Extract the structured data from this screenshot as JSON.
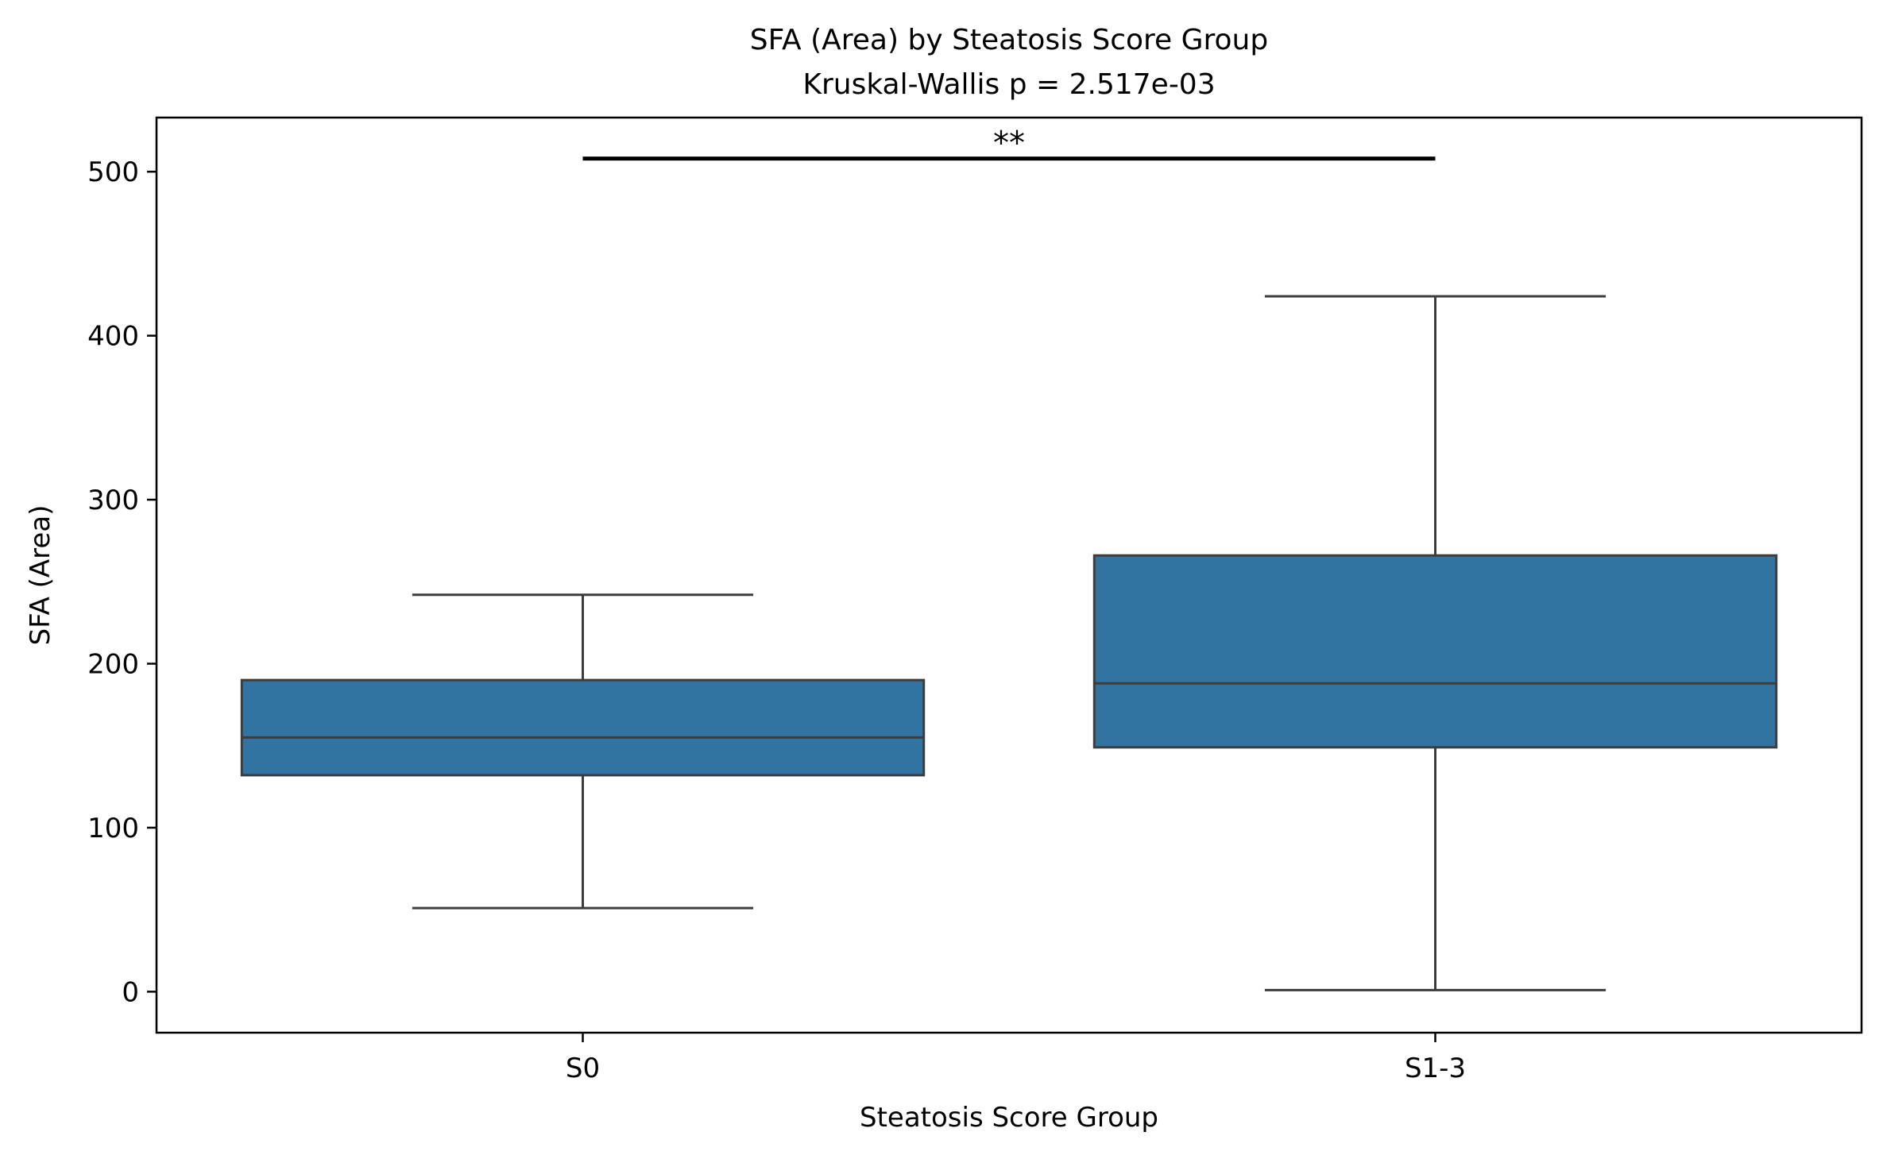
{
  "chart_data": {
    "type": "box",
    "title": "SFA (Area) by Steatosis Score Group",
    "subtitle": "Kruskal-Wallis p = 2.517e-03",
    "xlabel": "Steatosis Score Group",
    "ylabel": "SFA (Area)",
    "ylim": [
      -25,
      533
    ],
    "yticks": [
      0,
      100,
      200,
      300,
      400,
      500
    ],
    "ytick_labels": [
      "0",
      "100",
      "200",
      "300",
      "400",
      "500"
    ],
    "categories": [
      "S0",
      "S1-3"
    ],
    "boxes": [
      {
        "category": "S0",
        "whisker_low": 51,
        "q1": 132,
        "median": 155,
        "q3": 190,
        "whisker_high": 242
      },
      {
        "category": "S1-3",
        "whisker_low": 1,
        "q1": 149,
        "median": 188,
        "q3": 266,
        "whisker_high": 424
      }
    ],
    "box_color": "#3274a1",
    "edge_color": "#3d3d3d",
    "significance": {
      "from": "S0",
      "to": "S1-3",
      "y": 508,
      "label": "**"
    },
    "grid": false
  }
}
